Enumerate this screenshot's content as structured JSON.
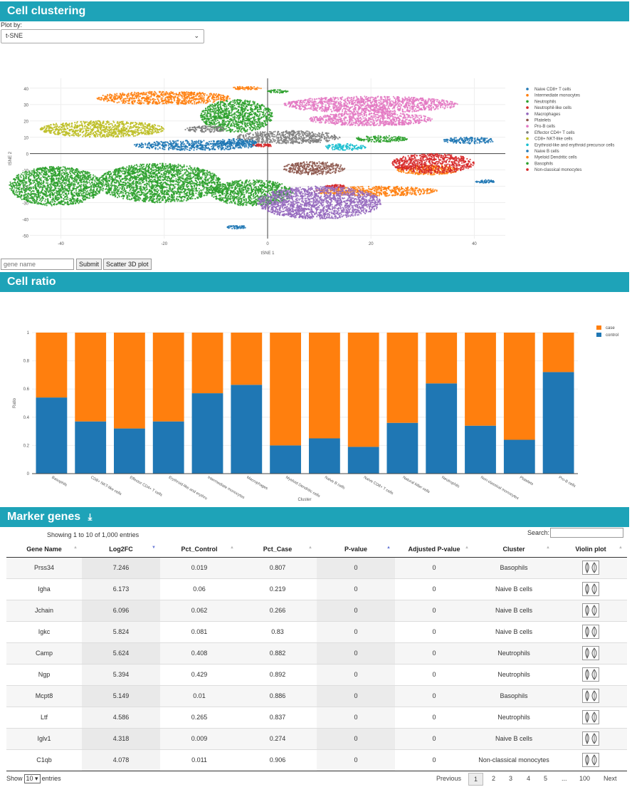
{
  "sections": {
    "clustering": "Cell clustering",
    "ratio": "Cell ratio",
    "markers": "Marker genes"
  },
  "plot_by": {
    "label": "Plot by:",
    "selected": "t-SNE"
  },
  "tsne_chart": {
    "type": "scatter",
    "xlabel": "tSNE 1",
    "ylabel": "tSNE 2",
    "xlim": [
      -46,
      46
    ],
    "ylim": [
      -52,
      46
    ],
    "x_ticks": [
      -40,
      -20,
      0,
      20,
      40
    ],
    "y_ticks": [
      40,
      30,
      20,
      10,
      0,
      -10,
      -20,
      -30,
      -40,
      -50
    ],
    "clusters": [
      {
        "name": "Naive CD8+ T cells",
        "color": "#1f77b4",
        "blobs": [
          [
            39,
            8,
            5,
            2
          ],
          [
            -14,
            5,
            12,
            3
          ],
          [
            42,
            -17,
            2,
            1
          ],
          [
            -6,
            -45,
            2,
            1
          ]
        ]
      },
      {
        "name": "Intermediate monocytes",
        "color": "#ff7f0e",
        "blobs": [
          [
            -20,
            34,
            13,
            4
          ],
          [
            31,
            -10,
            6,
            3
          ],
          [
            21,
            -23,
            12,
            3
          ]
        ]
      },
      {
        "name": "Neutrophils",
        "color": "#2ca02c",
        "blobs": [
          [
            -41,
            -20,
            9,
            12
          ],
          [
            -21,
            -18,
            12,
            12
          ],
          [
            -3,
            -24,
            8,
            8
          ],
          [
            -6,
            23,
            7,
            10
          ],
          [
            22,
            9,
            5,
            2
          ]
        ]
      },
      {
        "name": "Neutrophil-like cells",
        "color": "#d62728",
        "blobs": [
          [
            32,
            -6,
            8,
            6
          ],
          [
            13,
            -20,
            2,
            1
          ]
        ]
      },
      {
        "name": "Macrophages",
        "color": "#9467bd",
        "blobs": [
          [
            10,
            -30,
            12,
            10
          ]
        ]
      },
      {
        "name": "Platelets",
        "color": "#8c564b",
        "blobs": [
          [
            9,
            -9,
            6,
            4
          ]
        ]
      },
      {
        "name": "Pro-B cells",
        "color": "#e377c2",
        "blobs": [
          [
            20,
            30,
            17,
            5
          ],
          [
            20,
            21,
            12,
            4
          ]
        ]
      },
      {
        "name": "Effector CD4+ T cells",
        "color": "#7f7f7f",
        "blobs": [
          [
            4,
            10,
            10,
            4
          ],
          [
            -12,
            15,
            4,
            2
          ]
        ]
      },
      {
        "name": "CD8+ NKT-like cells",
        "color": "#bcbd22",
        "blobs": [
          [
            -32,
            15,
            12,
            5
          ]
        ]
      },
      {
        "name": "Erythroid-like and erythroid precursor cells",
        "color": "#17becf",
        "blobs": [
          [
            15,
            4,
            4,
            2
          ]
        ]
      },
      {
        "name": "Naive B cells",
        "color": "#1f77b4",
        "blobs": [
          [
            -6,
            7,
            4,
            2
          ]
        ]
      },
      {
        "name": "Myeloid Dendritic cells",
        "color": "#ff7f0e",
        "blobs": [
          [
            -4,
            40,
            3,
            1
          ]
        ]
      },
      {
        "name": "Basophils",
        "color": "#2ca02c",
        "blobs": [
          [
            2,
            38,
            2,
            1
          ]
        ]
      },
      {
        "name": "Non-classical monocytes",
        "color": "#d62728",
        "blobs": [
          [
            -1,
            5,
            2,
            1
          ]
        ]
      }
    ]
  },
  "gene_search": {
    "placeholder": "gene name",
    "submit": "Submit",
    "scatter3d": "Scatter 3D plot"
  },
  "ratio_chart": {
    "type": "bar",
    "xlabel": "Cluster",
    "ylabel": "Ratio",
    "ylim": [
      0,
      1
    ],
    "y_ticks": [
      0,
      0.2,
      0.4,
      0.6,
      0.8,
      1
    ],
    "categories": [
      "Basophils",
      "CD8+ NKT-like cells",
      "Effector CD4+ T cells",
      "Erythroid-like and erythro",
      "Intermediate monocytes",
      "Macrophages",
      "Myeloid Dendritic cells",
      "Naive B cells",
      "Naive CD8+ T cells",
      "Natural killer cells",
      "Neutrophils",
      "Non-classical monocytes",
      "Platelets",
      "Pro-B cells"
    ],
    "series": [
      {
        "name": "control",
        "color": "#1f77b4",
        "values": [
          0.54,
          0.37,
          0.32,
          0.37,
          0.57,
          0.63,
          0.2,
          0.25,
          0.19,
          0.36,
          0.64,
          0.34,
          0.24,
          0.72
        ]
      },
      {
        "name": "case",
        "color": "#ff7f0e",
        "values": [
          0.46,
          0.63,
          0.68,
          0.63,
          0.43,
          0.37,
          0.8,
          0.75,
          0.81,
          0.64,
          0.36,
          0.66,
          0.76,
          0.28
        ]
      }
    ],
    "legend": [
      "case",
      "control"
    ]
  },
  "markers_table": {
    "info": "Showing 1 to 10 of 1,000 entries",
    "search_label": "Search:",
    "columns": [
      "Gene Name",
      "Log2FC",
      "Pct_Control",
      "Pct_Case",
      "P-value",
      "Adjusted P-value",
      "Cluster",
      "Violin plot"
    ],
    "rows": [
      [
        "Prss34",
        "7.246",
        "0.019",
        "0.807",
        "0",
        "0",
        "Basophils"
      ],
      [
        "Igha",
        "6.173",
        "0.06",
        "0.219",
        "0",
        "0",
        "Naive B cells"
      ],
      [
        "Jchain",
        "6.096",
        "0.062",
        "0.266",
        "0",
        "0",
        "Naive B cells"
      ],
      [
        "Igkc",
        "5.824",
        "0.081",
        "0.83",
        "0",
        "0",
        "Naive B cells"
      ],
      [
        "Camp",
        "5.624",
        "0.408",
        "0.882",
        "0",
        "0",
        "Neutrophils"
      ],
      [
        "Ngp",
        "5.394",
        "0.429",
        "0.892",
        "0",
        "0",
        "Neutrophils"
      ],
      [
        "Mcpt8",
        "5.149",
        "0.01",
        "0.886",
        "0",
        "0",
        "Basophils"
      ],
      [
        "Ltf",
        "4.586",
        "0.265",
        "0.837",
        "0",
        "0",
        "Neutrophils"
      ],
      [
        "Iglv1",
        "4.318",
        "0.009",
        "0.274",
        "0",
        "0",
        "Naive B cells"
      ],
      [
        "C1qb",
        "4.078",
        "0.011",
        "0.906",
        "0",
        "0",
        "Non-classical monocytes"
      ]
    ],
    "show": "Show",
    "entries_value": "10",
    "entries": "entries",
    "pagination": [
      "Previous",
      "1",
      "2",
      "3",
      "4",
      "5",
      "...",
      "100",
      "Next"
    ]
  }
}
